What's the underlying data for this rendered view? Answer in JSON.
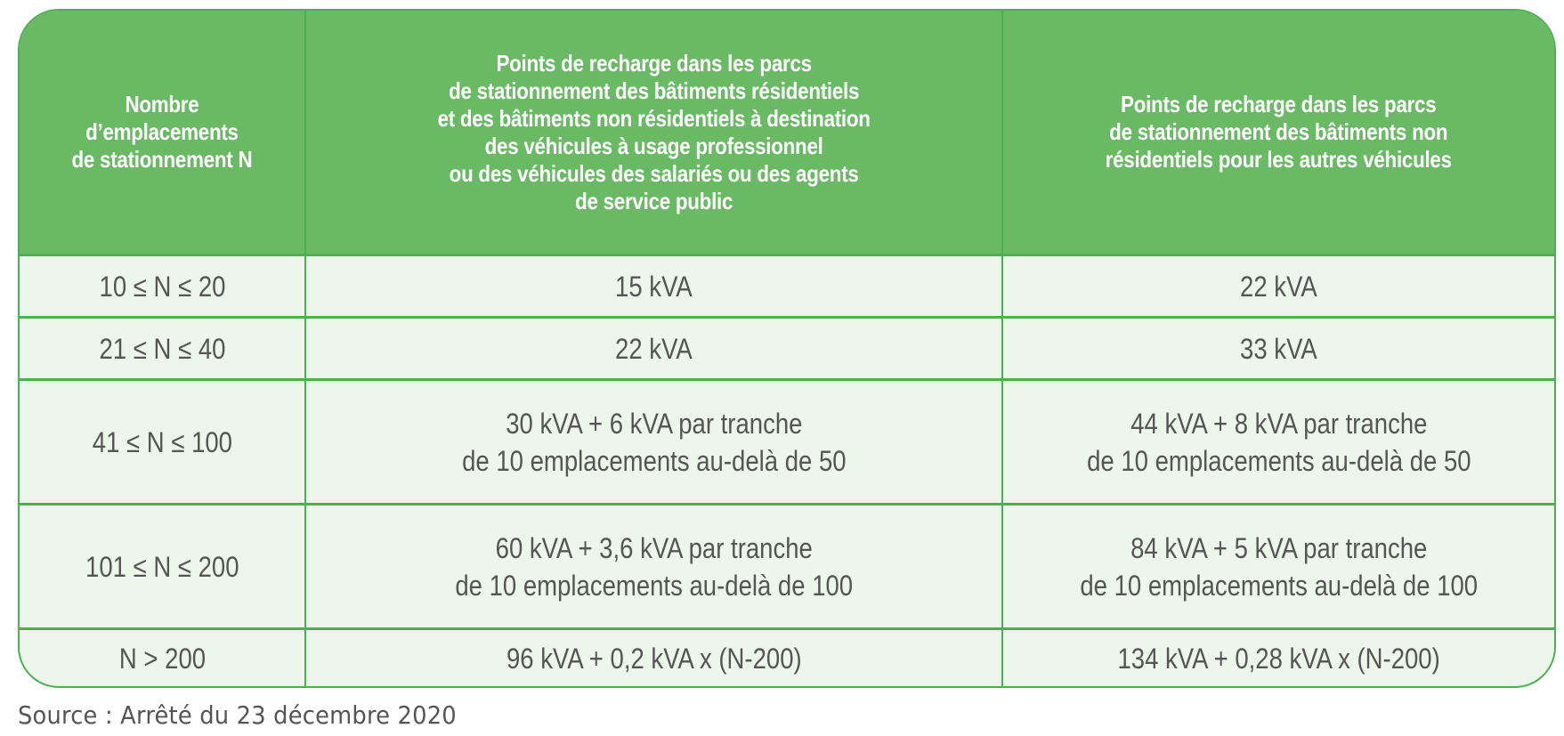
{
  "table": {
    "headers": [
      "Nombre\nd’emplacements\nde stationnement N",
      "Points de recharge dans les parcs\nde stationnement des bâtiments résidentiels\net des bâtiments non résidentiels à destination\ndes véhicules à usage professionnel\nou des véhicules des salariés ou des agents\nde service public",
      "Points de recharge dans les parcs\nde stationnement des bâtiments non\nrésidentiels pour les autres véhicules"
    ],
    "rows": [
      [
        "10 ≤ N ≤ 20",
        "15 kVA",
        "22 kVA"
      ],
      [
        "21 ≤ N ≤ 40",
        "22 kVA",
        "33 kVA"
      ],
      [
        "41 ≤ N ≤ 100",
        "30 kVA + 6 kVA par tranche\nde 10 emplacements au-delà de 50",
        "44 kVA + 8 kVA par tranche\nde 10 emplacements au-delà de 50"
      ],
      [
        "101 ≤ N ≤ 200",
        "60 kVA + 3,6 kVA par tranche\nde 10 emplacements au-delà de 100",
        "84 kVA + 5 kVA par tranche\nde 10 emplacements au-delà de 100"
      ],
      [
        "N > 200",
        "96 kVA + 0,2 kVA x (N-200)",
        "134 kVA + 0,28 kVA x (N-200)"
      ]
    ]
  },
  "source": "Source : Arrêté du 23 décembre 2020",
  "colors": {
    "header_bg": "#6aba65",
    "border": "#4caf50",
    "cell_bg": "#edf6ea",
    "header_text": "#ffffff",
    "cell_text": "#555555"
  }
}
